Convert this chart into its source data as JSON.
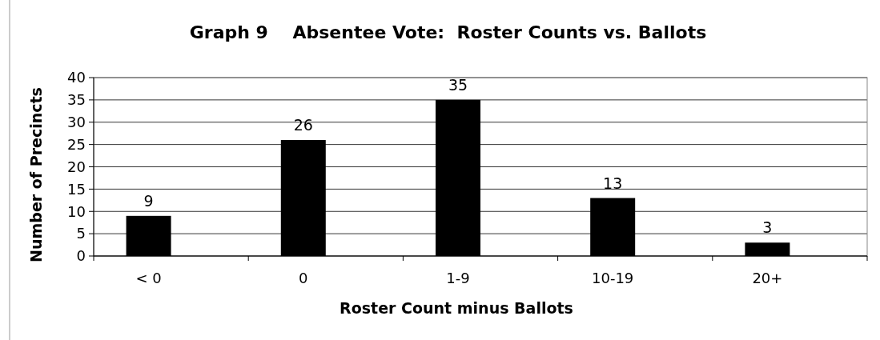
{
  "chart_data": {
    "type": "bar",
    "title": "Graph 9    Absentee Vote:  Roster Counts vs. Ballots",
    "xlabel": "Roster Count minus Ballots",
    "ylabel": "Number of Precincts",
    "categories": [
      "< 0",
      "0",
      "1-9",
      "10-19",
      "20+"
    ],
    "values": [
      9,
      26,
      35,
      13,
      3
    ],
    "color": "#000000",
    "ylim": [
      0,
      40
    ],
    "yticks": [
      0,
      5,
      10,
      15,
      20,
      25,
      30,
      35,
      40
    ],
    "grid": "y",
    "data_labels": true
  }
}
